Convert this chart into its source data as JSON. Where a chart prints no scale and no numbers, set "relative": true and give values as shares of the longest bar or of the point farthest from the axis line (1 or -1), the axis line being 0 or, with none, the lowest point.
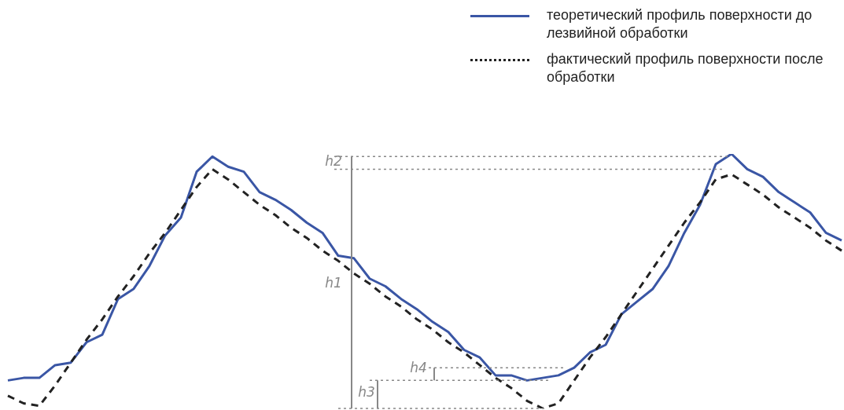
{
  "chart_data": {
    "type": "line",
    "relative": true,
    "legend": "top right",
    "marker": "none",
    "categories": [
      null,
      null,
      null,
      null,
      null,
      null,
      null,
      null,
      null,
      null,
      null,
      null,
      null,
      null,
      null,
      null,
      null,
      null,
      null,
      null,
      null,
      null,
      null,
      null,
      null,
      null,
      null,
      null,
      null,
      null,
      null,
      null,
      null,
      null,
      null,
      null,
      null,
      null,
      null,
      null,
      null,
      null,
      null,
      null,
      null,
      null,
      null,
      null,
      null,
      null,
      null,
      null,
      null,
      null
    ],
    "series": [
      {
        "name": "теоретический профиль поверхности до лезвийной обработки",
        "color": "#3a56a5",
        "line_style": "solid",
        "values": [
          0.11,
          0.12,
          0.12,
          0.17,
          0.18,
          0.26,
          0.29,
          0.43,
          0.47,
          0.56,
          0.68,
          0.75,
          0.93,
          0.99,
          0.95,
          0.93,
          0.85,
          0.82,
          0.78,
          0.73,
          0.69,
          0.6,
          0.59,
          0.51,
          0.48,
          0.43,
          0.39,
          0.34,
          0.3,
          0.23,
          0.2,
          0.13,
          0.13,
          0.11,
          0.12,
          0.13,
          0.16,
          0.22,
          0.25,
          0.37,
          0.42,
          0.47,
          0.56,
          0.69,
          0.8,
          0.96,
          1.0,
          0.94,
          0.91,
          0.85,
          0.81,
          0.77,
          0.69,
          0.66
        ]
      },
      {
        "name": "фактический профиль поверхности после обработки",
        "color": "#222222",
        "line_style": "dashed",
        "values": [
          0.05,
          0.02,
          0.01,
          0.09,
          0.18,
          0.27,
          0.35,
          0.44,
          0.52,
          0.61,
          0.69,
          0.78,
          0.87,
          0.94,
          0.9,
          0.85,
          0.8,
          0.76,
          0.71,
          0.67,
          0.62,
          0.58,
          0.53,
          0.49,
          0.44,
          0.4,
          0.35,
          0.31,
          0.26,
          0.22,
          0.17,
          0.12,
          0.08,
          0.03,
          0,
          0.02,
          0.11,
          0.2,
          0.28,
          0.37,
          0.46,
          0.55,
          0.64,
          0.73,
          0.81,
          0.9,
          0.92,
          0.88,
          0.84,
          0.79,
          0.75,
          0.71,
          0.66,
          0.62
        ]
      }
    ],
    "ref_lines": [
      {
        "axis": "y",
        "value": 0.99,
        "color": "#888888",
        "line_style": "dotted"
      },
      {
        "axis": "y",
        "value": 0.94,
        "color": "#888888",
        "line_style": "dotted"
      },
      {
        "axis": "y",
        "value": 0.16,
        "color": "#888888",
        "line_style": "dotted"
      },
      {
        "axis": "y",
        "value": 0.11,
        "color": "#888888",
        "line_style": "dotted"
      },
      {
        "axis": "y",
        "value": 0,
        "color": "#888888",
        "line_style": "dotted"
      }
    ],
    "annotations": [
      "h1",
      "h2",
      "h3",
      "h4"
    ]
  }
}
